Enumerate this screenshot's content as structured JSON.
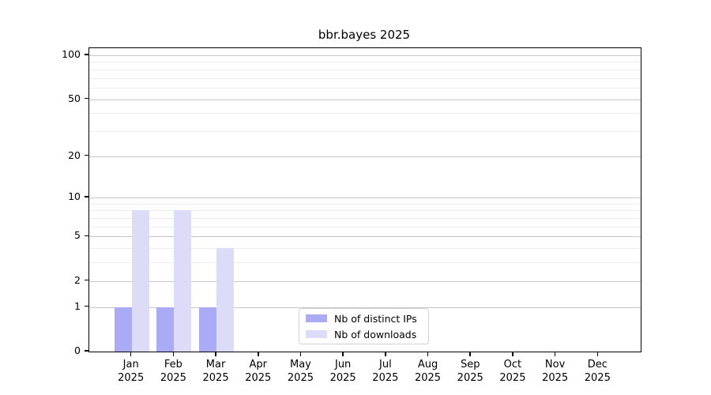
{
  "title": "bbr.bayes 2025",
  "chart_data": {
    "type": "bar",
    "title": "bbr.bayes 2025",
    "categories": [
      "Jan",
      "Feb",
      "Mar",
      "Apr",
      "May",
      "Jun",
      "Jul",
      "Aug",
      "Sep",
      "Oct",
      "Nov",
      "Dec"
    ],
    "year_label": "2025",
    "series": [
      {
        "name": "Nb of distinct IPs",
        "color": "#aaaaf5",
        "values": [
          1,
          1,
          1,
          0,
          0,
          0,
          0,
          0,
          0,
          0,
          0,
          0
        ]
      },
      {
        "name": "Nb of downloads",
        "color": "#dcdcf8",
        "values": [
          8,
          8,
          4,
          0,
          0,
          0,
          0,
          0,
          0,
          0,
          0,
          0
        ]
      }
    ],
    "xlabel": "",
    "ylabel": "",
    "y_axis": {
      "scale": "log1p",
      "ylim": [
        0,
        100
      ],
      "ticks": [
        0,
        1,
        2,
        5,
        10,
        20,
        50,
        100
      ],
      "minor_ticks": [
        3,
        4,
        6,
        7,
        8,
        9,
        30,
        40,
        60,
        70,
        80,
        90
      ]
    },
    "grid": true,
    "legend_position": "bottom-center"
  },
  "colors": {
    "axis": "#000000",
    "grid_major": "#c6c6c6",
    "grid_minor": "#ececec",
    "background": "#ffffff"
  }
}
